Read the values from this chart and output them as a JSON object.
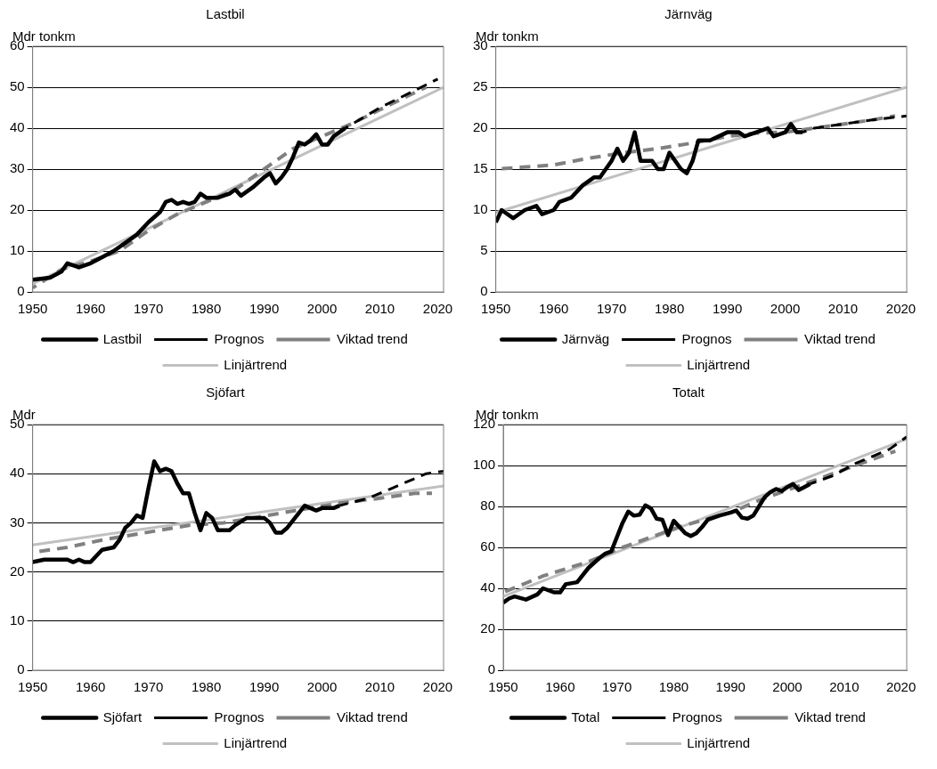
{
  "chart_data": [
    {
      "type": "line",
      "title": "Lastbil",
      "ylabel": "Mdr tonkm",
      "xlim": [
        1950,
        2021
      ],
      "xticks": [
        1950,
        1960,
        1970,
        1980,
        1990,
        2000,
        2010,
        2020
      ],
      "ylim": [
        0,
        60
      ],
      "yticks": [
        0,
        10,
        20,
        30,
        40,
        50,
        60
      ],
      "grid": "y",
      "legend": "bottom",
      "marker": "none",
      "series": [
        {
          "name": "Lastbil",
          "color": "#000000",
          "line_style": "solid",
          "x": [
            1950,
            1953,
            1955,
            1956,
            1958,
            1960,
            1962,
            1964,
            1966,
            1968,
            1970,
            1972,
            1973,
            1974,
            1975,
            1976,
            1977,
            1978,
            1979,
            1980,
            1982,
            1984,
            1985,
            1986,
            1988,
            1990,
            1991,
            1992,
            1993,
            1994,
            1995,
            1996,
            1997,
            1998,
            1999,
            2000,
            2001,
            2002,
            2003,
            2004
          ],
          "values": [
            3,
            3.5,
            5,
            7,
            6,
            7,
            8.5,
            10,
            12,
            14,
            17,
            19.5,
            22,
            22.5,
            21.5,
            22,
            21.5,
            22,
            24,
            23,
            23,
            24,
            25,
            23.5,
            25.5,
            28,
            29,
            26.5,
            28,
            30,
            33,
            36.5,
            36,
            37,
            38.5,
            36,
            36,
            38,
            39,
            40
          ]
        },
        {
          "name": "Prognos",
          "color": "#000000",
          "line_style": "dashed",
          "x": [
            2004,
            2010,
            2020
          ],
          "values": [
            40,
            45,
            52
          ]
        },
        {
          "name": "Viktad trend",
          "color": "#808080",
          "line_style": "dashed",
          "x": [
            1950,
            1955,
            1960,
            1965,
            1970,
            1975,
            1980,
            1985,
            1990,
            1995,
            2000,
            2005,
            2010,
            2015,
            2018
          ],
          "values": [
            1,
            5.5,
            7.5,
            10,
            15,
            19,
            22,
            25,
            30,
            35,
            38,
            41,
            44.5,
            48,
            50
          ]
        },
        {
          "name": "Linjärtrend",
          "color": "#c0c0c0",
          "line_style": "solid",
          "x": [
            1950,
            2021
          ],
          "values": [
            2,
            50
          ]
        }
      ]
    },
    {
      "type": "line",
      "title": "Järnväg",
      "ylabel": "Mdr tonkm",
      "xlim": [
        1950,
        2021
      ],
      "xticks": [
        1950,
        1960,
        1970,
        1980,
        1990,
        2000,
        2010,
        2020
      ],
      "ylim": [
        0,
        30
      ],
      "yticks": [
        0,
        5,
        10,
        15,
        20,
        25,
        30
      ],
      "grid": "y",
      "legend": "bottom",
      "marker": "none",
      "series": [
        {
          "name": "Järnväg",
          "color": "#000000",
          "line_style": "solid",
          "x": [
            1950,
            1951,
            1953,
            1955,
            1957,
            1958,
            1960,
            1961,
            1963,
            1965,
            1967,
            1968,
            1970,
            1971,
            1972,
            1973,
            1974,
            1975,
            1977,
            1978,
            1979,
            1980,
            1982,
            1983,
            1984,
            1985,
            1987,
            1990,
            1992,
            1993,
            1995,
            1997,
            1998,
            2000,
            2001,
            2002,
            2003
          ],
          "values": [
            8.5,
            10,
            9,
            10,
            10.5,
            9.5,
            10,
            11,
            11.5,
            13,
            14,
            14,
            16,
            17.5,
            16,
            17,
            19.5,
            16,
            16,
            15,
            15,
            17,
            15,
            14.5,
            16,
            18.5,
            18.5,
            19.5,
            19.5,
            19,
            19.5,
            20,
            19,
            19.5,
            20.5,
            19.5,
            19.5
          ]
        },
        {
          "name": "Prognos",
          "color": "#000000",
          "line_style": "dashed",
          "x": [
            2003,
            2005,
            2010,
            2015,
            2021
          ],
          "values": [
            19.5,
            20,
            20.5,
            21,
            21.5
          ]
        },
        {
          "name": "Viktad trend",
          "color": "#808080",
          "line_style": "dashed",
          "x": [
            1950,
            1960,
            1965,
            1972,
            1978,
            1985,
            1990,
            1995,
            2000,
            2005,
            2010,
            2015,
            2019
          ],
          "values": [
            15,
            15.5,
            16.2,
            17,
            17.5,
            18.3,
            19,
            19.4,
            19.5,
            20,
            20.5,
            21,
            21.5
          ]
        },
        {
          "name": "Linjärtrend",
          "color": "#c0c0c0",
          "line_style": "solid",
          "x": [
            1950,
            2021
          ],
          "values": [
            9.7,
            25
          ]
        }
      ]
    },
    {
      "type": "line",
      "title": "Sjöfart",
      "ylabel": "Mdr",
      "xlim": [
        1950,
        2021
      ],
      "xticks": [
        1950,
        1960,
        1970,
        1980,
        1990,
        2000,
        2010,
        2020
      ],
      "ylim": [
        0,
        50
      ],
      "yticks": [
        0,
        10,
        20,
        30,
        40,
        50
      ],
      "grid": "y",
      "legend": "bottom",
      "marker": "none",
      "series": [
        {
          "name": "Sjöfart",
          "color": "#000000",
          "line_style": "solid",
          "x": [
            1950,
            1952,
            1956,
            1957,
            1958,
            1959,
            1960,
            1962,
            1964,
            1965,
            1966,
            1967,
            1968,
            1969,
            1970,
            1971,
            1972,
            1973,
            1974,
            1975,
            1976,
            1977,
            1978,
            1979,
            1980,
            1981,
            1982,
            1984,
            1985,
            1987,
            1990,
            1991,
            1992,
            1993,
            1994,
            1996,
            1997,
            1999,
            2000,
            2002,
            2003
          ],
          "values": [
            22,
            22.5,
            22.5,
            22,
            22.5,
            22,
            22,
            24.5,
            25,
            26.5,
            29,
            30,
            31.5,
            31,
            37,
            42.5,
            40.5,
            41,
            40.5,
            38,
            36,
            36,
            32,
            28.5,
            32,
            31,
            28.5,
            28.5,
            29.5,
            31,
            31,
            30,
            28,
            28,
            29,
            32,
            33.5,
            32.5,
            33,
            33,
            33.5
          ]
        },
        {
          "name": "Prognos",
          "color": "#000000",
          "line_style": "dashed",
          "x": [
            2003,
            2008,
            2012,
            2018,
            2021
          ],
          "values": [
            33.5,
            35,
            37,
            40,
            40.5
          ]
        },
        {
          "name": "Viktad trend",
          "color": "#808080",
          "line_style": "dashed",
          "x": [
            1950,
            1956,
            1962,
            1967,
            1972,
            1977,
            1983,
            1988,
            1993,
            1998,
            2003,
            2010,
            2016,
            2019
          ],
          "values": [
            24,
            25,
            26.5,
            27.5,
            28.5,
            29.5,
            30,
            31,
            32,
            33,
            34,
            35,
            36,
            36
          ]
        },
        {
          "name": "Linjärtrend",
          "color": "#c0c0c0",
          "line_style": "solid",
          "x": [
            1950,
            2021
          ],
          "values": [
            25.5,
            37.5
          ]
        }
      ]
    },
    {
      "type": "line",
      "title": "Totalt",
      "ylabel": "Mdr tonkm",
      "xlim": [
        1950,
        2021
      ],
      "xticks": [
        1950,
        1960,
        1970,
        1980,
        1990,
        2000,
        2010,
        2020
      ],
      "ylim": [
        0,
        120
      ],
      "yticks": [
        0,
        20,
        40,
        60,
        80,
        100,
        120
      ],
      "grid": "y",
      "legend": "bottom",
      "marker": "none",
      "series": [
        {
          "name": "Total",
          "color": "#000000",
          "line_style": "solid",
          "x": [
            1950,
            1951,
            1952,
            1954,
            1956,
            1957,
            1959,
            1960,
            1961,
            1963,
            1965,
            1967,
            1968,
            1969,
            1970,
            1971,
            1972,
            1973,
            1974,
            1975,
            1976,
            1977,
            1978,
            1979,
            1980,
            1981,
            1982,
            1983,
            1984,
            1985,
            1986,
            1988,
            1990,
            1991,
            1992,
            1993,
            1994,
            1995,
            1996,
            1997,
            1998,
            1999,
            2000,
            2001,
            2002,
            2003,
            2004
          ],
          "values": [
            33,
            35,
            36,
            34.5,
            37,
            40,
            38,
            38,
            42,
            43,
            50,
            55,
            57,
            58,
            65,
            72,
            77.5,
            75.5,
            76,
            80.5,
            79,
            74,
            73.5,
            66,
            73,
            70,
            67,
            65.5,
            67,
            70,
            73.5,
            75.5,
            77,
            78,
            74.5,
            74,
            75.5,
            80,
            84.5,
            87,
            88.5,
            87.5,
            89.5,
            91,
            88,
            89.5,
            91
          ]
        },
        {
          "name": "Prognos",
          "color": "#000000",
          "line_style": "dashed",
          "x": [
            2004,
            2008,
            2012,
            2018,
            2021
          ],
          "values": [
            91,
            95,
            101,
            108,
            114
          ]
        },
        {
          "name": "Viktad trend",
          "color": "#808080",
          "line_style": "dashed",
          "x": [
            1950,
            1957,
            1965,
            1971,
            1976,
            1981,
            1986,
            1990,
            1995,
            2000,
            2004,
            2012,
            2019
          ],
          "values": [
            38,
            46,
            53,
            60,
            65,
            70,
            74,
            77,
            83,
            88,
            92,
            100,
            107
          ]
        },
        {
          "name": "Linjärtrend",
          "color": "#c0c0c0",
          "line_style": "solid",
          "x": [
            1950,
            2021
          ],
          "values": [
            36,
            113
          ]
        }
      ]
    }
  ]
}
